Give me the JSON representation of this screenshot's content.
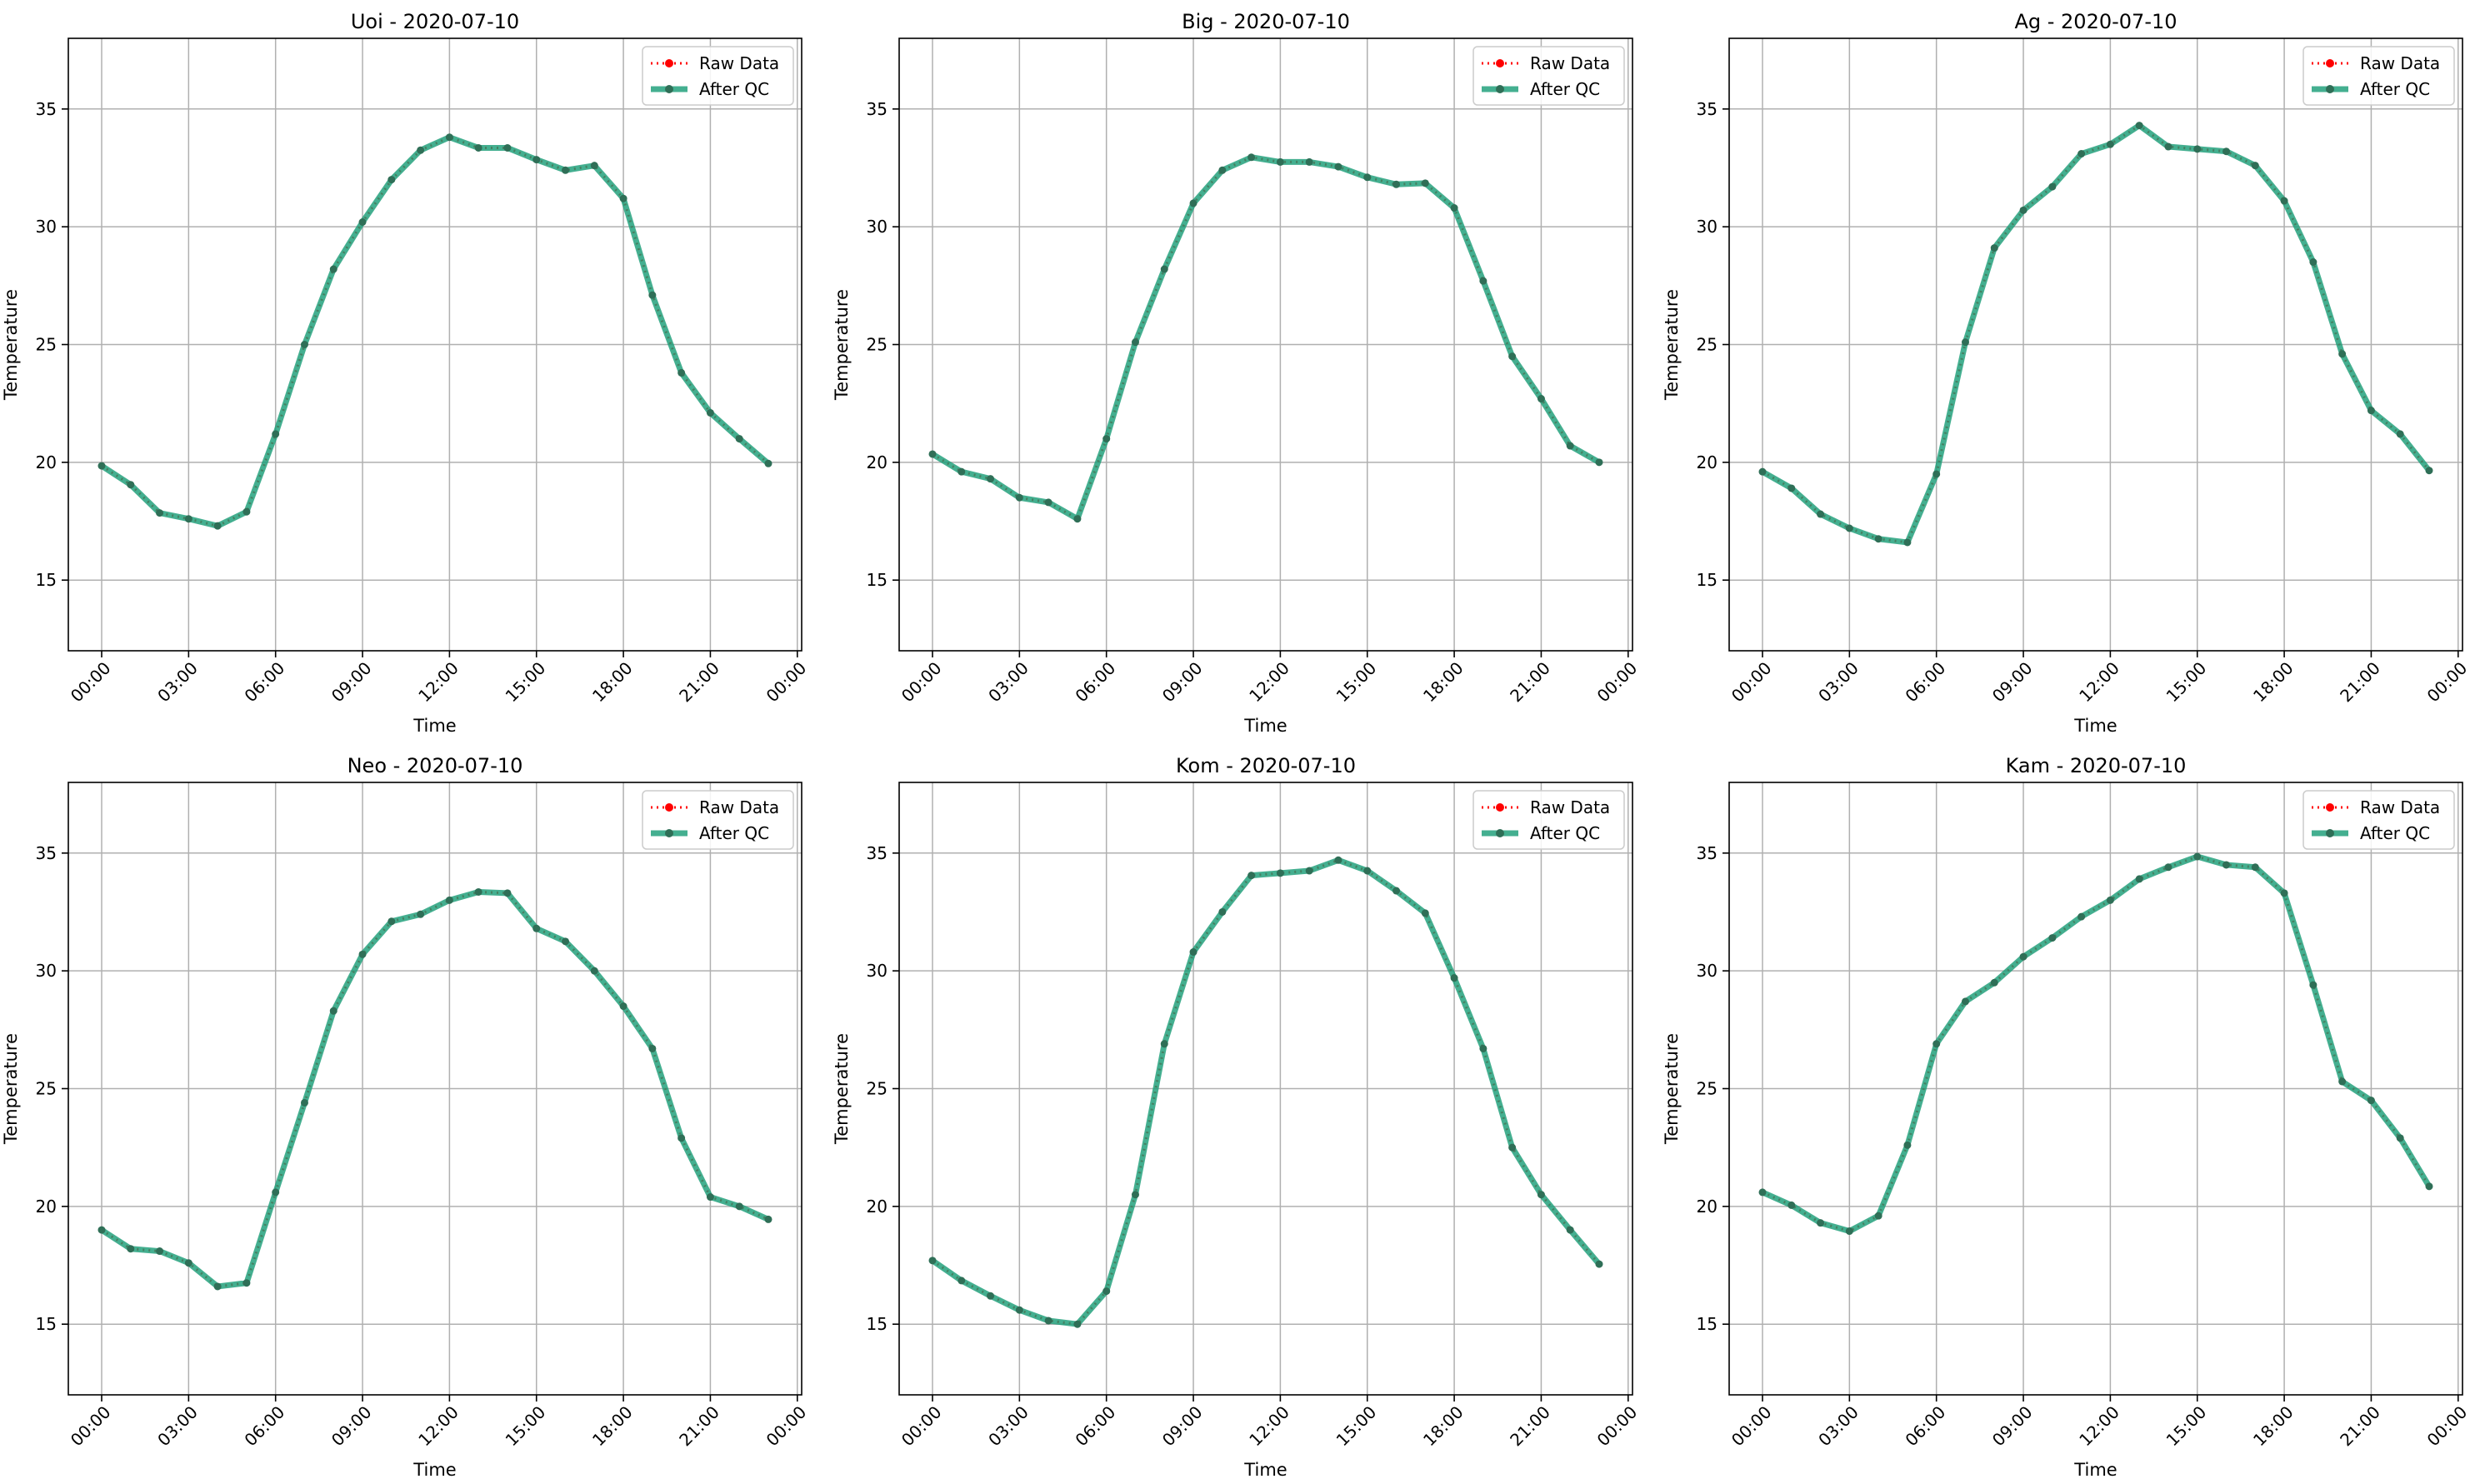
{
  "colors": {
    "raw": "#ff0000",
    "qc": "#1b9e77",
    "marker": "#2f6f57",
    "grid": "#b0b0b0",
    "axis": "#000000"
  },
  "legend": {
    "raw_label": "Raw Data",
    "qc_label": "After QC",
    "position": "upper right"
  },
  "chart_data": [
    {
      "type": "line",
      "title": "Uoi - 2020-07-10",
      "xlabel": "Time",
      "ylabel": "Temperature",
      "ylim": [
        12,
        38
      ],
      "yticks": [
        15,
        20,
        25,
        30,
        35
      ],
      "xticks": [
        "00:00",
        "03:00",
        "06:00",
        "09:00",
        "12:00",
        "15:00",
        "18:00",
        "21:00",
        "00:00"
      ],
      "x_hours": [
        0,
        1,
        2,
        3,
        4,
        5,
        6,
        7,
        8,
        9,
        10,
        11,
        12,
        13,
        14,
        15,
        16,
        17,
        18,
        19,
        20,
        21,
        22,
        23
      ],
      "grid": true,
      "series": [
        {
          "name": "Raw Data",
          "values": [
            19.85,
            19.05,
            17.85,
            17.6,
            17.3,
            17.9,
            21.2,
            25.0,
            28.2,
            30.2,
            32.0,
            33.25,
            33.8,
            33.35,
            33.35,
            32.85,
            32.4,
            32.6,
            31.2,
            27.1,
            23.8,
            22.1,
            21.0,
            19.95
          ]
        },
        {
          "name": "After QC",
          "values": [
            19.85,
            19.05,
            17.85,
            17.6,
            17.3,
            17.9,
            21.2,
            25.0,
            28.2,
            30.2,
            32.0,
            33.25,
            33.8,
            33.35,
            33.35,
            32.85,
            32.4,
            32.6,
            31.2,
            27.1,
            23.8,
            22.1,
            21.0,
            19.95
          ]
        }
      ]
    },
    {
      "type": "line",
      "title": "Big - 2020-07-10",
      "xlabel": "Time",
      "ylabel": "Temperature",
      "ylim": [
        12,
        38
      ],
      "yticks": [
        15,
        20,
        25,
        30,
        35
      ],
      "xticks": [
        "00:00",
        "03:00",
        "06:00",
        "09:00",
        "12:00",
        "15:00",
        "18:00",
        "21:00",
        "00:00"
      ],
      "x_hours": [
        0,
        1,
        2,
        3,
        4,
        5,
        6,
        7,
        8,
        9,
        10,
        11,
        12,
        13,
        14,
        15,
        16,
        17,
        18,
        19,
        20,
        21,
        22,
        23
      ],
      "grid": true,
      "series": [
        {
          "name": "Raw Data",
          "values": [
            20.35,
            19.6,
            19.3,
            18.5,
            18.3,
            17.6,
            21.0,
            25.1,
            28.2,
            31.0,
            32.4,
            32.95,
            32.75,
            32.75,
            32.55,
            32.1,
            31.8,
            31.85,
            30.8,
            27.7,
            24.5,
            22.7,
            20.7,
            20.0
          ]
        },
        {
          "name": "After QC",
          "values": [
            20.35,
            19.6,
            19.3,
            18.5,
            18.3,
            17.6,
            21.0,
            25.1,
            28.2,
            31.0,
            32.4,
            32.95,
            32.75,
            32.75,
            32.55,
            32.1,
            31.8,
            31.85,
            30.8,
            27.7,
            24.5,
            22.7,
            20.7,
            20.0
          ]
        }
      ]
    },
    {
      "type": "line",
      "title": "Ag - 2020-07-10",
      "xlabel": "Time",
      "ylabel": "Temperature",
      "ylim": [
        12,
        38
      ],
      "yticks": [
        15,
        20,
        25,
        30,
        35
      ],
      "xticks": [
        "00:00",
        "03:00",
        "06:00",
        "09:00",
        "12:00",
        "15:00",
        "18:00",
        "21:00",
        "00:00"
      ],
      "x_hours": [
        0,
        1,
        2,
        3,
        4,
        5,
        6,
        7,
        8,
        9,
        10,
        11,
        12,
        13,
        14,
        15,
        16,
        17,
        18,
        19,
        20,
        21,
        22,
        23
      ],
      "grid": true,
      "series": [
        {
          "name": "Raw Data",
          "values": [
            19.6,
            18.9,
            17.8,
            17.2,
            16.75,
            16.6,
            19.5,
            25.1,
            29.1,
            30.7,
            31.7,
            33.1,
            33.5,
            34.3,
            33.4,
            33.3,
            33.2,
            32.6,
            31.1,
            28.5,
            24.6,
            22.2,
            21.2,
            19.65
          ]
        },
        {
          "name": "After QC",
          "values": [
            19.6,
            18.9,
            17.8,
            17.2,
            16.75,
            16.6,
            19.5,
            25.1,
            29.1,
            30.7,
            31.7,
            33.1,
            33.5,
            34.3,
            33.4,
            33.3,
            33.2,
            32.6,
            31.1,
            28.5,
            24.6,
            22.2,
            21.2,
            19.65
          ]
        }
      ]
    },
    {
      "type": "line",
      "title": "Neo - 2020-07-10",
      "xlabel": "Time",
      "ylabel": "Temperature",
      "ylim": [
        12,
        38
      ],
      "yticks": [
        15,
        20,
        25,
        30,
        35
      ],
      "xticks": [
        "00:00",
        "03:00",
        "06:00",
        "09:00",
        "12:00",
        "15:00",
        "18:00",
        "21:00",
        "00:00"
      ],
      "x_hours": [
        0,
        1,
        2,
        3,
        4,
        5,
        6,
        7,
        8,
        9,
        10,
        11,
        12,
        13,
        14,
        15,
        16,
        17,
        18,
        19,
        20,
        21,
        22,
        23
      ],
      "grid": true,
      "series": [
        {
          "name": "Raw Data",
          "values": [
            19.0,
            18.2,
            18.1,
            17.6,
            16.6,
            16.75,
            20.6,
            24.4,
            28.3,
            30.7,
            32.1,
            32.4,
            33.0,
            33.35,
            33.3,
            31.8,
            31.25,
            30.0,
            28.5,
            26.7,
            22.9,
            20.4,
            20.0,
            19.45
          ]
        },
        {
          "name": "After QC",
          "values": [
            19.0,
            18.2,
            18.1,
            17.6,
            16.6,
            16.75,
            20.6,
            24.4,
            28.3,
            30.7,
            32.1,
            32.4,
            33.0,
            33.35,
            33.3,
            31.8,
            31.25,
            30.0,
            28.5,
            26.7,
            22.9,
            20.4,
            20.0,
            19.45
          ]
        }
      ]
    },
    {
      "type": "line",
      "title": "Kom - 2020-07-10",
      "xlabel": "Time",
      "ylabel": "Temperature",
      "ylim": [
        12,
        38
      ],
      "yticks": [
        15,
        20,
        25,
        30,
        35
      ],
      "xticks": [
        "00:00",
        "03:00",
        "06:00",
        "09:00",
        "12:00",
        "15:00",
        "18:00",
        "21:00",
        "00:00"
      ],
      "x_hours": [
        0,
        1,
        2,
        3,
        4,
        5,
        6,
        7,
        8,
        9,
        10,
        11,
        12,
        13,
        14,
        15,
        16,
        17,
        18,
        19,
        20,
        21,
        22,
        23
      ],
      "grid": true,
      "series": [
        {
          "name": "Raw Data",
          "values": [
            17.7,
            16.85,
            16.2,
            15.6,
            15.15,
            15.0,
            16.4,
            20.5,
            26.9,
            30.8,
            32.5,
            34.05,
            34.15,
            34.25,
            34.7,
            34.25,
            33.4,
            32.45,
            29.7,
            26.7,
            22.5,
            20.5,
            19.0,
            17.55
          ]
        },
        {
          "name": "After QC",
          "values": [
            17.7,
            16.85,
            16.2,
            15.6,
            15.15,
            15.0,
            16.4,
            20.5,
            26.9,
            30.8,
            32.5,
            34.05,
            34.15,
            34.25,
            34.7,
            34.25,
            33.4,
            32.45,
            29.7,
            26.7,
            22.5,
            20.5,
            19.0,
            17.55
          ]
        }
      ]
    },
    {
      "type": "line",
      "title": "Kam - 2020-07-10",
      "xlabel": "Time",
      "ylabel": "Temperature",
      "ylim": [
        12,
        38
      ],
      "yticks": [
        15,
        20,
        25,
        30,
        35
      ],
      "xticks": [
        "00:00",
        "03:00",
        "06:00",
        "09:00",
        "12:00",
        "15:00",
        "18:00",
        "21:00",
        "00:00"
      ],
      "x_hours": [
        0,
        1,
        2,
        3,
        4,
        5,
        6,
        7,
        8,
        9,
        10,
        11,
        12,
        13,
        14,
        15,
        16,
        17,
        18,
        19,
        20,
        21,
        22,
        23
      ],
      "grid": true,
      "series": [
        {
          "name": "Raw Data",
          "values": [
            20.6,
            20.05,
            19.3,
            18.95,
            19.6,
            22.6,
            26.9,
            28.7,
            29.5,
            30.6,
            31.4,
            32.3,
            33.0,
            33.9,
            34.4,
            34.85,
            34.5,
            34.4,
            33.3,
            29.4,
            25.3,
            24.5,
            22.9,
            20.85
          ]
        },
        {
          "name": "After QC",
          "values": [
            20.6,
            20.05,
            19.3,
            18.95,
            19.6,
            22.6,
            26.9,
            28.7,
            29.5,
            30.6,
            31.4,
            32.3,
            33.0,
            33.9,
            34.4,
            34.85,
            34.5,
            34.4,
            33.3,
            29.4,
            25.3,
            24.5,
            22.9,
            20.85
          ]
        }
      ]
    }
  ]
}
